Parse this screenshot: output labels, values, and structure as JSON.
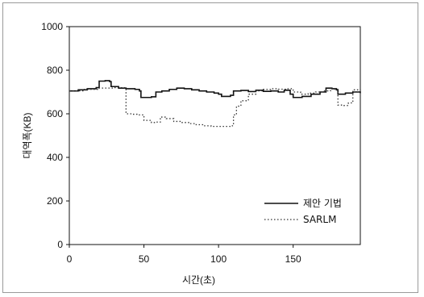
{
  "chart_data": {
    "type": "line",
    "title": "",
    "xlabel": "시간(초)",
    "ylabel": "대역폭(KB)",
    "xlim": [
      0,
      195
    ],
    "ylim": [
      0,
      1000
    ],
    "x_ticks": [
      0,
      50,
      100,
      150
    ],
    "y_ticks": [
      0,
      200,
      400,
      600,
      800,
      1000
    ],
    "grid": false,
    "legend_position": "bottom-right",
    "series": [
      {
        "name": "제안 기법",
        "style": "solid",
        "color": "#111111",
        "points": [
          [
            0,
            705
          ],
          [
            6,
            710
          ],
          [
            12,
            715
          ],
          [
            18,
            720
          ],
          [
            20,
            750
          ],
          [
            24,
            752
          ],
          [
            27,
            748
          ],
          [
            28,
            725
          ],
          [
            33,
            718
          ],
          [
            38,
            715
          ],
          [
            44,
            712
          ],
          [
            47,
            705
          ],
          [
            48,
            675
          ],
          [
            55,
            678
          ],
          [
            58,
            700
          ],
          [
            62,
            705
          ],
          [
            67,
            712
          ],
          [
            72,
            718
          ],
          [
            77,
            715
          ],
          [
            82,
            710
          ],
          [
            87,
            705
          ],
          [
            92,
            700
          ],
          [
            97,
            695
          ],
          [
            100,
            690
          ],
          [
            102,
            680
          ],
          [
            108,
            685
          ],
          [
            110,
            705
          ],
          [
            115,
            707
          ],
          [
            120,
            702
          ],
          [
            125,
            708
          ],
          [
            130,
            703
          ],
          [
            135,
            705
          ],
          [
            140,
            700
          ],
          [
            144,
            708
          ],
          [
            148,
            690
          ],
          [
            150,
            675
          ],
          [
            156,
            680
          ],
          [
            162,
            690
          ],
          [
            168,
            700
          ],
          [
            172,
            718
          ],
          [
            176,
            715
          ],
          [
            179,
            710
          ],
          [
            180,
            690
          ],
          [
            185,
            695
          ],
          [
            190,
            700
          ],
          [
            195,
            695
          ]
        ]
      },
      {
        "name": "SARLM",
        "style": "dotted",
        "color": "#333333",
        "points": [
          [
            0,
            705
          ],
          [
            10,
            712
          ],
          [
            20,
            718
          ],
          [
            30,
            720
          ],
          [
            37,
            718
          ],
          [
            38,
            600
          ],
          [
            42,
            598
          ],
          [
            46,
            595
          ],
          [
            50,
            570
          ],
          [
            55,
            560
          ],
          [
            58,
            562
          ],
          [
            61,
            585
          ],
          [
            65,
            578
          ],
          [
            70,
            565
          ],
          [
            75,
            560
          ],
          [
            80,
            555
          ],
          [
            85,
            550
          ],
          [
            90,
            545
          ],
          [
            95,
            542
          ],
          [
            100,
            542
          ],
          [
            105,
            542
          ],
          [
            108,
            545
          ],
          [
            110,
            595
          ],
          [
            112,
            635
          ],
          [
            115,
            660
          ],
          [
            120,
            690
          ],
          [
            125,
            705
          ],
          [
            130,
            712
          ],
          [
            135,
            715
          ],
          [
            140,
            713
          ],
          [
            145,
            715
          ],
          [
            150,
            700
          ],
          [
            155,
            690
          ],
          [
            160,
            695
          ],
          [
            165,
            700
          ],
          [
            170,
            705
          ],
          [
            175,
            715
          ],
          [
            178,
            712
          ],
          [
            180,
            640
          ],
          [
            184,
            638
          ],
          [
            187,
            650
          ],
          [
            190,
            710
          ],
          [
            195,
            712
          ]
        ]
      }
    ]
  }
}
